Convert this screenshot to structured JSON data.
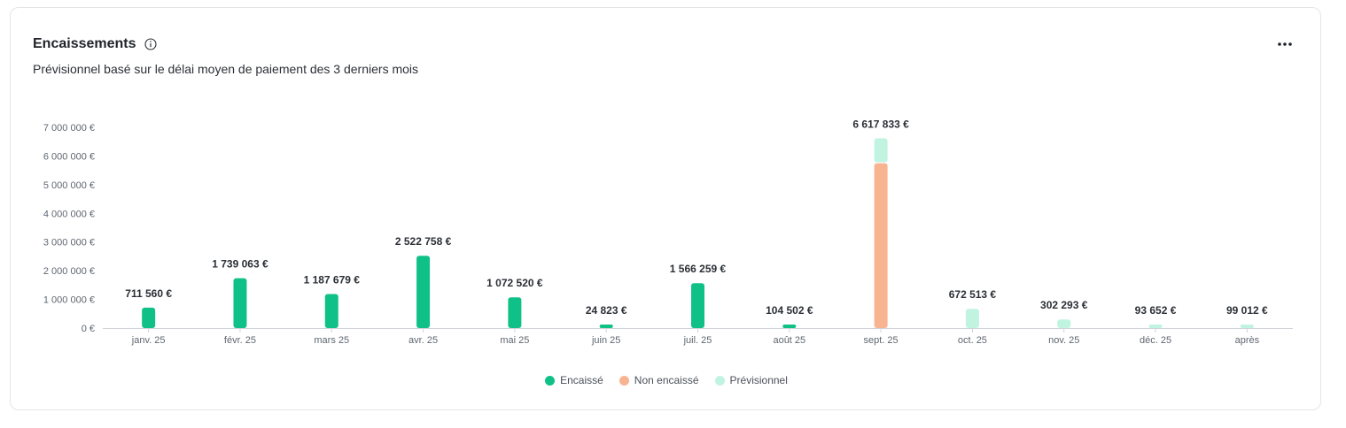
{
  "header": {
    "title": "Encaissements",
    "subtitle": "Prévisionnel basé sur le délai moyen de paiement des 3 derniers mois",
    "info_icon": "info-circle-icon",
    "menu_icon": "more-horizontal-icon"
  },
  "colors": {
    "encaisse": "#10c187",
    "non_encaisse": "#f8b391",
    "previsionnel": "#c0f4e1",
    "axis": "#cfd3d8"
  },
  "chart_data": {
    "type": "bar",
    "stacked": true,
    "categories": [
      "janv. 25",
      "févr. 25",
      "mars 25",
      "avr. 25",
      "mai 25",
      "juin 25",
      "juil. 25",
      "août 25",
      "sept. 25",
      "oct. 25",
      "nov. 25",
      "déc. 25",
      "après"
    ],
    "series": [
      {
        "name": "Encaissé",
        "color": "#10c187",
        "values": [
          711560,
          1739063,
          1187679,
          2522758,
          1072520,
          24823,
          1566259,
          104502,
          0,
          0,
          0,
          0,
          0
        ]
      },
      {
        "name": "Non encaissé",
        "color": "#f8b391",
        "values": [
          0,
          0,
          0,
          0,
          0,
          0,
          0,
          0,
          5780000,
          0,
          0,
          0,
          0
        ]
      },
      {
        "name": "Prévisionnel",
        "color": "#c0f4e1",
        "values": [
          0,
          0,
          0,
          0,
          0,
          0,
          0,
          0,
          837833,
          672513,
          302293,
          93652,
          99012
        ]
      }
    ],
    "total_labels": [
      "711 560 €",
      "1 739 063 €",
      "1 187 679 €",
      "2 522 758 €",
      "1 072 520 €",
      "24 823 €",
      "1 566 259 €",
      "104 502 €",
      "6 617 833 €",
      "672 513 €",
      "302 293 €",
      "93 652 €",
      "99 012 €"
    ],
    "y_ticks": [
      0,
      1000000,
      2000000,
      3000000,
      4000000,
      5000000,
      6000000,
      7000000
    ],
    "y_tick_labels": [
      "0 €",
      "1 000 000 €",
      "2 000 000 €",
      "3 000 000 €",
      "4 000 000 €",
      "5 000 000 €",
      "6 000 000 €",
      "7 000 000 €"
    ],
    "ylim": [
      0,
      7000000
    ],
    "legend_position": "bottom",
    "grid": false
  },
  "legend": [
    {
      "label": "Encaissé",
      "color": "#10c187"
    },
    {
      "label": "Non encaissé",
      "color": "#f8b391"
    },
    {
      "label": "Prévisionnel",
      "color": "#c0f4e1"
    }
  ]
}
